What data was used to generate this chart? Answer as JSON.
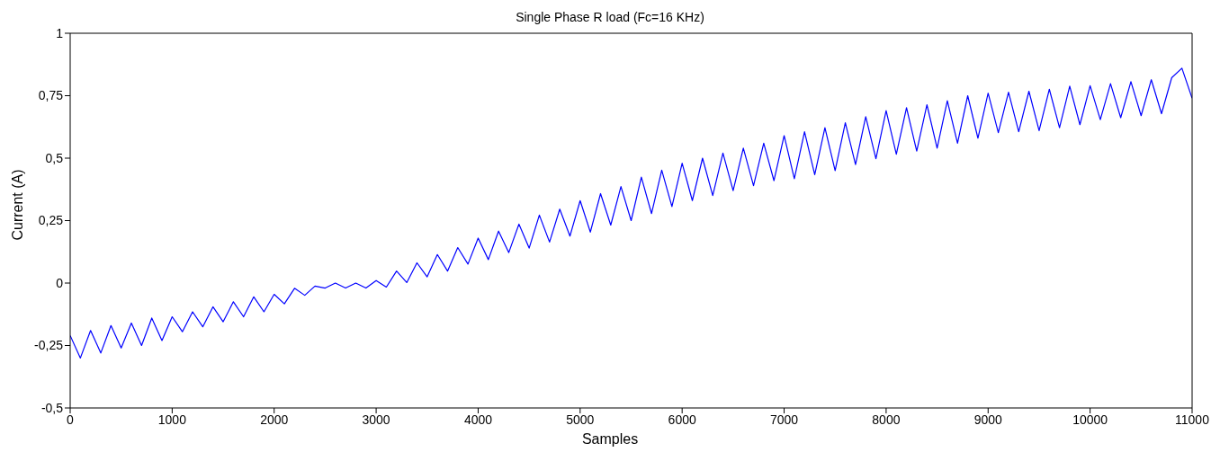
{
  "chart_data": {
    "type": "line",
    "title": "Single Phase R load (Fc=16 KHz)",
    "xlabel": "Samples",
    "ylabel": "Current (A)",
    "x": [
      0,
      100,
      200,
      300,
      400,
      500,
      600,
      700,
      800,
      900,
      1000,
      1100,
      1200,
      1300,
      1400,
      1500,
      1600,
      1700,
      1800,
      1900,
      2000,
      2100,
      2200,
      2300,
      2400,
      2500,
      2600,
      2700,
      2800,
      2900,
      3000,
      3100,
      3200,
      3300,
      3400,
      3500,
      3600,
      3700,
      3800,
      3900,
      4000,
      4100,
      4200,
      4300,
      4400,
      4500,
      4600,
      4700,
      4800,
      4900,
      5000,
      5100,
      5200,
      5300,
      5400,
      5500,
      5600,
      5700,
      5800,
      5900,
      6000,
      6100,
      6200,
      6300,
      6400,
      6500,
      6600,
      6700,
      6800,
      6900,
      7000,
      7100,
      7200,
      7300,
      7400,
      7500,
      7600,
      7700,
      7800,
      7900,
      8000,
      8100,
      8200,
      8300,
      8400,
      8500,
      8600,
      8700,
      8800,
      8900,
      9000,
      9100,
      9200,
      9300,
      9400,
      9500,
      9600,
      9700,
      9800,
      9900,
      10000,
      10100,
      10200,
      10300,
      10400,
      10500,
      10600,
      10700,
      10800,
      10900,
      11000
    ],
    "series": [
      {
        "color": "#0000ff",
        "values": [
          -0.21,
          -0.3,
          -0.19,
          -0.28,
          -0.17,
          -0.26,
          -0.16,
          -0.25,
          -0.14,
          -0.23,
          -0.135,
          -0.195,
          -0.115,
          -0.175,
          -0.095,
          -0.155,
          -0.075,
          -0.135,
          -0.055,
          -0.115,
          -0.045,
          -0.083,
          -0.021,
          -0.049,
          -0.012,
          -0.02,
          0,
          -0.02,
          0,
          -0.02,
          0.01,
          -0.016,
          0.048,
          0.002,
          0.081,
          0.025,
          0.114,
          0.048,
          0.142,
          0.076,
          0.18,
          0.094,
          0.208,
          0.122,
          0.236,
          0.14,
          0.272,
          0.164,
          0.296,
          0.188,
          0.33,
          0.204,
          0.358,
          0.232,
          0.386,
          0.25,
          0.424,
          0.278,
          0.452,
          0.306,
          0.48,
          0.33,
          0.5,
          0.35,
          0.52,
          0.37,
          0.54,
          0.39,
          0.56,
          0.41,
          0.59,
          0.418,
          0.606,
          0.434,
          0.622,
          0.45,
          0.642,
          0.474,
          0.666,
          0.498,
          0.69,
          0.516,
          0.702,
          0.528,
          0.714,
          0.54,
          0.73,
          0.56,
          0.75,
          0.58,
          0.76,
          0.602,
          0.764,
          0.606,
          0.768,
          0.61,
          0.776,
          0.622,
          0.788,
          0.634,
          0.79,
          0.654,
          0.798,
          0.662,
          0.806,
          0.67,
          0.814,
          0.678,
          0.822,
          0.86,
          0.74
        ]
      }
    ],
    "xlim": [
      0,
      11000
    ],
    "xticks": [
      0,
      1000,
      2000,
      3000,
      4000,
      5000,
      6000,
      7000,
      8000,
      9000,
      10000,
      11000
    ],
    "ylim": [
      -0.5,
      1
    ],
    "yticks": [
      {
        "value": -0.5,
        "label": "-0,5"
      },
      {
        "value": -0.25,
        "label": "-0,25"
      },
      0,
      {
        "value": 0.25,
        "label": "0,25"
      },
      {
        "value": 0.5,
        "label": "0,5"
      },
      {
        "value": 0.75,
        "label": "0,75"
      },
      1
    ],
    "grid": false,
    "marker": "none",
    "line_style": "solid"
  }
}
